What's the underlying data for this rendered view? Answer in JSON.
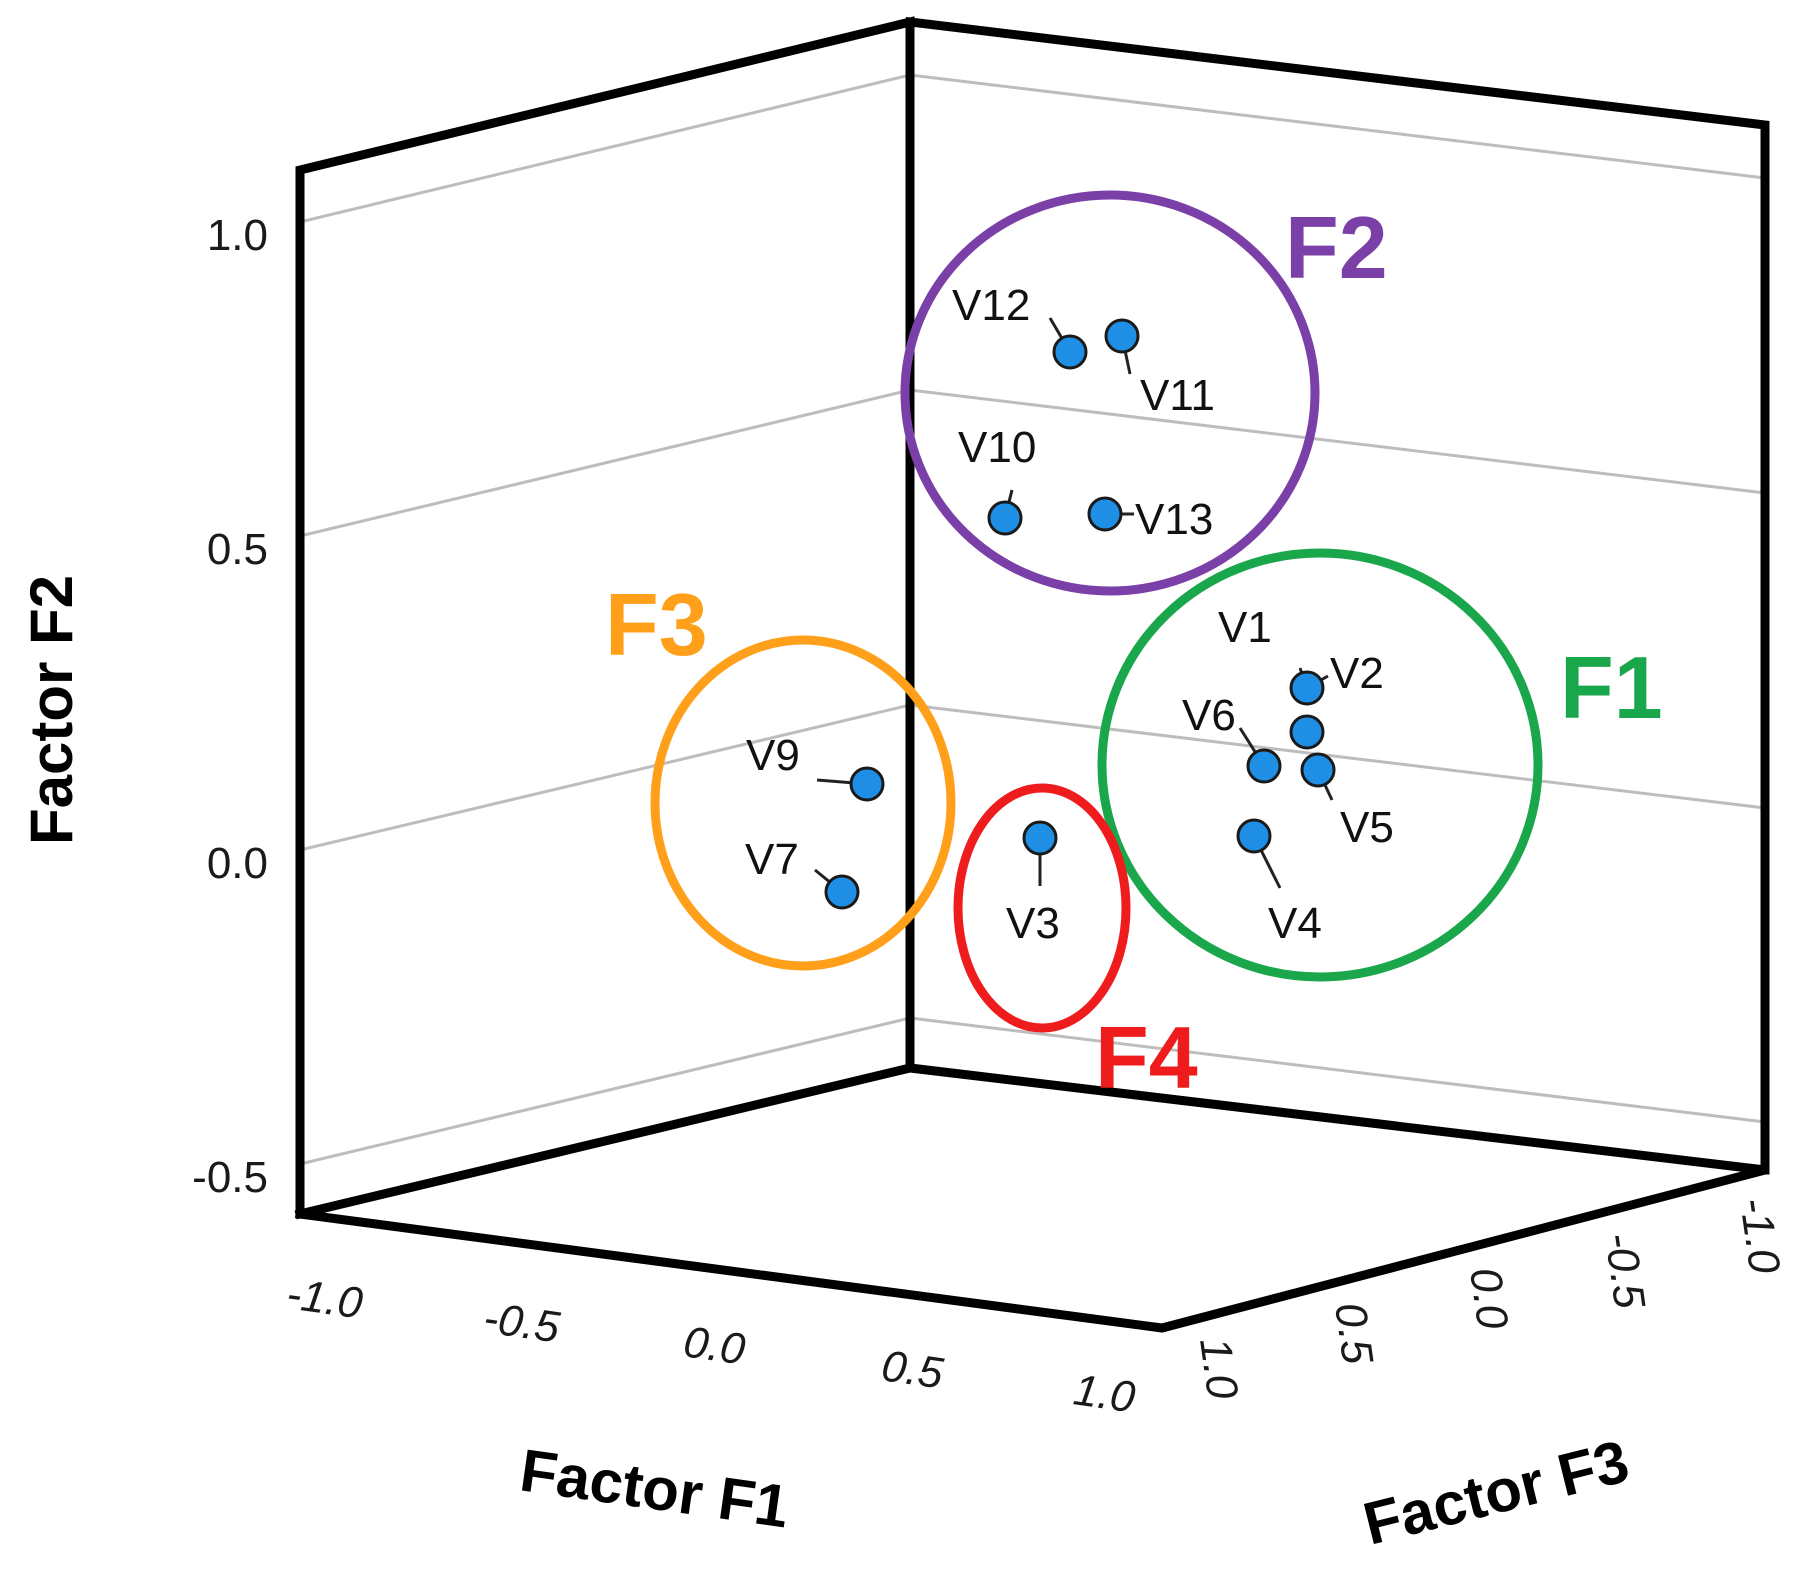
{
  "chart_data": {
    "type": "scatter",
    "projection": "3d",
    "axes": {
      "x": {
        "title": "Factor F1",
        "ticks": [
          "-1.0",
          "-0.5",
          "0.0",
          "0.5",
          "1.0"
        ],
        "range": [
          -1,
          1
        ]
      },
      "y": {
        "title": "Factor F2",
        "ticks": [
          "-0.5",
          "0.0",
          "0.5",
          "1.0"
        ],
        "range": [
          -0.6,
          1.1
        ]
      },
      "z": {
        "title": "Factor F3",
        "ticks": [
          "1.0",
          "0.5",
          "0.0",
          "-0.5",
          "-1.0"
        ],
        "range": [
          -1,
          1
        ]
      }
    },
    "grid": true,
    "points": [
      {
        "label": "V1",
        "f1": 0.68,
        "f2": 0.22,
        "f3": 0.08
      },
      {
        "label": "V2",
        "f1": 0.7,
        "f2": 0.16,
        "f3": 0.12
      },
      {
        "label": "V3",
        "f1": 0.28,
        "f2": -0.02,
        "f3": 0.18
      },
      {
        "label": "V4",
        "f1": 0.66,
        "f2": 0.0,
        "f3": 0.1
      },
      {
        "label": "V5",
        "f1": 0.72,
        "f2": 0.1,
        "f3": 0.14
      },
      {
        "label": "V6",
        "f1": 0.66,
        "f2": 0.1,
        "f3": 0.06
      },
      {
        "label": "V7",
        "f1": -0.02,
        "f2": -0.1,
        "f3": -0.55
      },
      {
        "label": "V9",
        "f1": 0.0,
        "f2": 0.08,
        "f3": -0.62
      },
      {
        "label": "V10",
        "f1": 0.18,
        "f2": 0.58,
        "f3": 0.12
      },
      {
        "label": "V11",
        "f1": 0.3,
        "f2": 0.9,
        "f3": 0.12
      },
      {
        "label": "V12",
        "f1": 0.25,
        "f2": 0.87,
        "f3": 0.12
      },
      {
        "label": "V13",
        "f1": 0.3,
        "f2": 0.56,
        "f3": 0.1
      }
    ],
    "clusters": [
      {
        "name": "F1",
        "color": "#1aa64a",
        "members": [
          "V1",
          "V2",
          "V4",
          "V5",
          "V6"
        ]
      },
      {
        "name": "F2",
        "color": "#7b3fa8",
        "members": [
          "V10",
          "V11",
          "V12",
          "V13"
        ]
      },
      {
        "name": "F3",
        "color": "#ff9f1a",
        "members": [
          "V7",
          "V9"
        ]
      },
      {
        "name": "F4",
        "color": "#ee1c1c",
        "members": [
          "V3"
        ]
      }
    ],
    "point_color": "#1f8fe6"
  }
}
